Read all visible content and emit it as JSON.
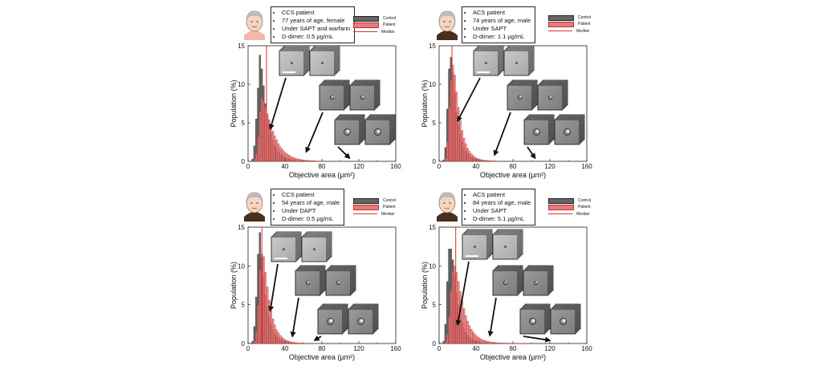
{
  "legend": {
    "control": "Control",
    "patient": "Patient",
    "median": "Median"
  },
  "colors": {
    "control": "#666666",
    "patient": "#e87a7a",
    "patient_edge": "#b32020",
    "median": "#dd2b2b"
  },
  "chart_data": [
    {
      "type": "bar",
      "panel": "top-left",
      "patient_info": [
        "CCS patient",
        "77 years of age, female",
        "Under SAPT and warfarin",
        "D-dimer: 0.5 µg/mL"
      ],
      "avatar": "elderly-woman-icon",
      "xlabel": "Objective area (µm²)",
      "ylabel": "Population (%)",
      "xlim": [
        0,
        160
      ],
      "ylim": [
        0,
        15
      ],
      "xticks": [
        "0",
        "40",
        "80",
        "120",
        "160"
      ],
      "yticks": [
        "0",
        "5",
        "10",
        "15"
      ],
      "bin_width": 2,
      "series": [
        {
          "name": "Control",
          "bin_starts": [
            4,
            6,
            8,
            10,
            12,
            14,
            16,
            18,
            20,
            22,
            24,
            26,
            28,
            30,
            32,
            34,
            36,
            38,
            40,
            42,
            44,
            46,
            48,
            50,
            52,
            54,
            56,
            58,
            60,
            62,
            64,
            66,
            68,
            70
          ],
          "values": [
            0.3,
            2.0,
            5.5,
            9.5,
            13.8,
            12.0,
            9.8,
            7.5,
            5.8,
            4.5,
            3.6,
            2.8,
            2.1,
            1.7,
            1.3,
            1.0,
            0.8,
            0.6,
            0.5,
            0.4,
            0.3,
            0.25,
            0.2,
            0.15,
            0.12,
            0.1,
            0.08,
            0.07,
            0.06,
            0.05,
            0.04,
            0.03,
            0.03,
            0.02
          ]
        },
        {
          "name": "Patient",
          "bin_starts": [
            6,
            8,
            10,
            12,
            14,
            16,
            18,
            20,
            22,
            24,
            26,
            28,
            30,
            32,
            34,
            36,
            38,
            40,
            42,
            44,
            46,
            48,
            50,
            52,
            54,
            56,
            58,
            60,
            62,
            64,
            66,
            68,
            70,
            72,
            74,
            76,
            78,
            80
          ],
          "values": [
            0.3,
            1.0,
            3.2,
            6.5,
            8.2,
            7.8,
            7.0,
            6.2,
            5.4,
            4.6,
            3.9,
            3.3,
            2.8,
            2.3,
            1.9,
            1.6,
            1.3,
            1.1,
            0.9,
            0.75,
            0.6,
            0.5,
            0.42,
            0.35,
            0.3,
            0.25,
            0.2,
            0.17,
            0.14,
            0.12,
            0.1,
            0.08,
            0.07,
            0.06,
            0.05,
            0.04,
            0.03,
            0.02
          ]
        }
      ],
      "median_x": 20,
      "arrows": [
        {
          "to": [
            24,
            4
          ]
        },
        {
          "to": [
            63,
            1
          ]
        },
        {
          "to": [
            110,
            0.2
          ]
        }
      ]
    },
    {
      "type": "bar",
      "panel": "top-right",
      "patient_info": [
        "ACS patient",
        "74 years of age, male",
        "Under SAPT",
        "D-dimer: 1.1 µg/mL"
      ],
      "avatar": "elderly-man-icon",
      "xlabel": "Objective area (µm²)",
      "ylabel": "Population (%)",
      "xlim": [
        0,
        160
      ],
      "ylim": [
        0,
        15
      ],
      "xticks": [
        "0",
        "40",
        "80",
        "120",
        "160"
      ],
      "yticks": [
        "0",
        "5",
        "10",
        "15"
      ],
      "bin_width": 2,
      "series": [
        {
          "name": "Control",
          "bin_starts": [
            4,
            6,
            8,
            10,
            12,
            14,
            16,
            18,
            20,
            22,
            24,
            26,
            28,
            30,
            32,
            34,
            36,
            38,
            40,
            42,
            44,
            46,
            48,
            50,
            52,
            54,
            56,
            58,
            60
          ],
          "values": [
            0.2,
            1.8,
            6.8,
            12.0,
            13.5,
            11.5,
            8.8,
            6.4,
            4.8,
            3.6,
            2.6,
            1.9,
            1.4,
            1.0,
            0.8,
            0.6,
            0.45,
            0.35,
            0.28,
            0.2,
            0.15,
            0.12,
            0.1,
            0.08,
            0.06,
            0.05,
            0.04,
            0.03,
            0.02
          ]
        },
        {
          "name": "Patient",
          "bin_starts": [
            6,
            8,
            10,
            12,
            14,
            16,
            18,
            20,
            22,
            24,
            26,
            28,
            30,
            32,
            34,
            36,
            38,
            40,
            42,
            44,
            46,
            48,
            50,
            52,
            54,
            56,
            58,
            60,
            62,
            64
          ],
          "values": [
            0.4,
            2.5,
            7.0,
            10.5,
            12.5,
            11.2,
            9.0,
            7.0,
            5.3,
            4.0,
            3.0,
            2.3,
            1.7,
            1.3,
            1.0,
            0.75,
            0.55,
            0.42,
            0.32,
            0.25,
            0.2,
            0.15,
            0.12,
            0.1,
            0.08,
            0.06,
            0.05,
            0.04,
            0.03,
            0.02
          ]
        }
      ],
      "median_x": 14,
      "arrows": [
        {
          "to": [
            20,
            5
          ]
        },
        {
          "to": [
            60,
            0.6
          ]
        },
        {
          "to": [
            104,
            0.2
          ]
        }
      ]
    },
    {
      "type": "bar",
      "panel": "bottom-left",
      "patient_info": [
        "CCS patient",
        "54 years of age, male",
        "Under DAPT",
        "D-dimer: 0.5 µg/mL"
      ],
      "avatar": "man-icon",
      "xlabel": "Objective area (µm²)",
      "ylabel": "Population (%)",
      "xlim": [
        0,
        160
      ],
      "ylim": [
        0,
        15
      ],
      "xticks": [
        "0",
        "40",
        "80",
        "120",
        "160"
      ],
      "yticks": [
        "0",
        "5",
        "10",
        "15"
      ],
      "bin_width": 2,
      "series": [
        {
          "name": "Control",
          "bin_starts": [
            4,
            6,
            8,
            10,
            12,
            14,
            16,
            18,
            20,
            22,
            24,
            26,
            28,
            30,
            32,
            34,
            36,
            38,
            40,
            42,
            44,
            46,
            48,
            50,
            52,
            54,
            56,
            58,
            60
          ],
          "values": [
            0.3,
            2.2,
            6.0,
            11.5,
            14.3,
            11.0,
            8.5,
            6.3,
            4.6,
            3.4,
            2.5,
            1.8,
            1.3,
            1.0,
            0.75,
            0.55,
            0.42,
            0.32,
            0.24,
            0.18,
            0.14,
            0.11,
            0.09,
            0.07,
            0.05,
            0.04,
            0.03,
            0.03,
            0.02
          ]
        },
        {
          "name": "Patient",
          "bin_starts": [
            6,
            8,
            10,
            12,
            14,
            16,
            18,
            20,
            22,
            24,
            26,
            28,
            30,
            32,
            34,
            36,
            38,
            40,
            42,
            44,
            46,
            48,
            50,
            52,
            54,
            56,
            58,
            60,
            62,
            64,
            66
          ],
          "values": [
            0.3,
            1.5,
            5.0,
            9.5,
            11.5,
            11.2,
            9.2,
            7.3,
            5.6,
            4.2,
            3.2,
            2.4,
            1.8,
            1.4,
            1.05,
            0.8,
            0.6,
            0.45,
            0.35,
            0.27,
            0.2,
            0.16,
            0.12,
            0.1,
            0.08,
            0.06,
            0.05,
            0.04,
            0.03,
            0.02,
            0.02
          ]
        }
      ],
      "median_x": 15,
      "arrows": [
        {
          "to": [
            24,
            4
          ]
        },
        {
          "to": [
            48,
            0.7
          ]
        },
        {
          "to": [
            72,
            0.2
          ]
        }
      ]
    },
    {
      "type": "bar",
      "panel": "bottom-right",
      "patient_info": [
        "ACS patient",
        "84 years of age, male",
        "Under SAPT",
        "D-dimer: 5.1 µg/mL"
      ],
      "avatar": "elderly-man-icon",
      "xlabel": "Objective area (µm²)",
      "ylabel": "Population (%)",
      "xlim": [
        0,
        160
      ],
      "ylim": [
        0,
        15
      ],
      "xticks": [
        "0",
        "40",
        "80",
        "120",
        "160"
      ],
      "yticks": [
        "0",
        "5",
        "10",
        "15"
      ],
      "bin_width": 2,
      "series": [
        {
          "name": "Control",
          "bin_starts": [
            4,
            6,
            8,
            10,
            12,
            14,
            16,
            18,
            20,
            22,
            24,
            26,
            28,
            30,
            32,
            34,
            36,
            38,
            40,
            42,
            44,
            46,
            48,
            50,
            52,
            54,
            56,
            58,
            60
          ],
          "values": [
            0.3,
            2.5,
            8.0,
            12.2,
            12.2,
            10.8,
            8.7,
            6.6,
            5.0,
            3.7,
            2.7,
            2.0,
            1.5,
            1.1,
            0.85,
            0.65,
            0.5,
            0.38,
            0.3,
            0.22,
            0.17,
            0.13,
            0.1,
            0.08,
            0.06,
            0.05,
            0.04,
            0.03,
            0.02
          ]
        },
        {
          "name": "Patient",
          "bin_starts": [
            6,
            8,
            10,
            12,
            14,
            16,
            18,
            20,
            22,
            24,
            26,
            28,
            30,
            32,
            34,
            36,
            38,
            40,
            42,
            44,
            46,
            48,
            50,
            52,
            54,
            56,
            58,
            60,
            62,
            64,
            66,
            68,
            70,
            72,
            74,
            76,
            78,
            80,
            82,
            84,
            86,
            88,
            90
          ],
          "values": [
            0.3,
            1.2,
            3.5,
            6.8,
            9.3,
            10.0,
            9.2,
            8.0,
            6.7,
            5.5,
            4.5,
            3.6,
            2.9,
            2.3,
            1.85,
            1.5,
            1.2,
            0.95,
            0.78,
            0.63,
            0.5,
            0.4,
            0.33,
            0.27,
            0.22,
            0.18,
            0.15,
            0.12,
            0.1,
            0.09,
            0.08,
            0.07,
            0.06,
            0.05,
            0.05,
            0.04,
            0.04,
            0.03,
            0.03,
            0.03,
            0.02,
            0.02,
            0.02
          ]
        }
      ],
      "median_x": 18,
      "arrows": [
        {
          "to": [
            20,
            2.2
          ]
        },
        {
          "to": [
            55,
            0.8
          ]
        },
        {
          "to": [
            120,
            0.2
          ]
        }
      ]
    }
  ]
}
